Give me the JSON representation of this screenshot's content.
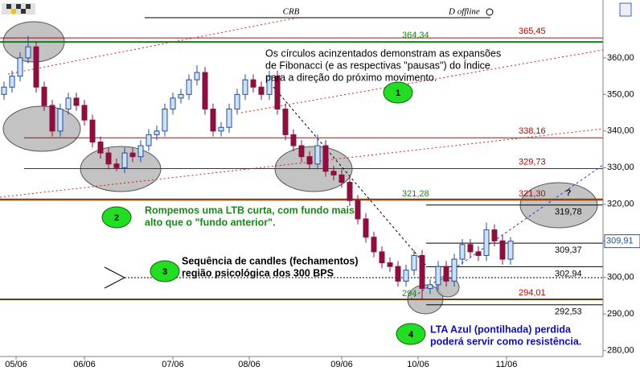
{
  "chart_data": {
    "type": "candlestick",
    "title": "CRB",
    "status": "D offline",
    "xlim": [
      -0.5,
      74.5
    ],
    "xticks": [
      {
        "value": 1.5,
        "label": "05/06"
      },
      {
        "value": 10,
        "label": "06/06"
      },
      {
        "value": 21,
        "label": "07/06"
      },
      {
        "value": 30.5,
        "label": "08/06"
      },
      {
        "value": 42,
        "label": "09/06"
      },
      {
        "value": 51.5,
        "label": "10/06"
      },
      {
        "value": 62.5,
        "label": "11/06"
      }
    ],
    "ylim": [
      278.4,
      375.8
    ],
    "yticks": [
      {
        "value": 280,
        "label": "280,00"
      },
      {
        "value": 290,
        "label": "290,00"
      },
      {
        "value": 300,
        "label": "300,00"
      },
      {
        "value": 310,
        "label": "310,00"
      },
      {
        "value": 320,
        "label": "320,00"
      },
      {
        "value": 330,
        "label": "330,00"
      },
      {
        "value": 340,
        "label": "340,00"
      },
      {
        "value": 350,
        "label": "350,00"
      },
      {
        "value": 360,
        "label": "360,00"
      }
    ],
    "last_price": {
      "value": 309.91,
      "label": "309,91"
    },
    "up_color": "#1f4fa0",
    "up_fill": "#cfe0fa",
    "down_color": "#8b1040",
    "open": [
      350,
      352,
      355,
      360,
      363,
      352,
      347,
      340,
      346,
      349,
      347,
      343,
      337,
      334,
      331,
      330,
      334,
      333,
      336,
      339,
      340,
      346,
      349,
      350,
      354,
      356,
      346,
      340,
      341,
      346,
      350,
      354,
      352,
      350,
      355,
      346,
      339,
      336,
      333,
      331,
      336,
      329,
      328,
      326,
      321,
      316,
      311,
      307,
      304,
      303,
      299,
      302,
      306,
      297,
      298,
      303,
      299,
      305,
      309,
      307,
      306,
      313,
      310,
      305
    ],
    "high": [
      353.5,
      356.5,
      361.5,
      366,
      364.5,
      353.5,
      348.5,
      347.5,
      350.5,
      350.5,
      348.5,
      344.5,
      338.5,
      335.5,
      332.5,
      335.5,
      335.5,
      337.5,
      340.5,
      341.5,
      347.5,
      350.5,
      351.5,
      355.5,
      358,
      357.5,
      347.5,
      342.5,
      347.5,
      351.5,
      355.5,
      355.5,
      353.5,
      356.5,
      356.5,
      347.5,
      340.5,
      337.5,
      334.5,
      339,
      337.5,
      330.5,
      329.5,
      327.5,
      322.5,
      317.5,
      312.5,
      308.5,
      305.5,
      304.5,
      303.5,
      307.5,
      307.5,
      299.5,
      304.5,
      304.5,
      306.5,
      310.5,
      310.5,
      308.5,
      315,
      314.5,
      311.5,
      311
    ],
    "low": [
      348.5,
      350.5,
      353.5,
      358.5,
      350.5,
      345.5,
      338.5,
      338.5,
      344.5,
      345.5,
      341.5,
      335.5,
      332.5,
      329.5,
      329,
      328.5,
      331.5,
      331.5,
      334.5,
      337.5,
      338.5,
      344.5,
      347.5,
      348.5,
      352.5,
      344.5,
      338.5,
      338.5,
      339.5,
      344.5,
      348.5,
      350.5,
      348.5,
      348.5,
      344.5,
      337.5,
      334.5,
      331.5,
      329.5,
      329.5,
      327.5,
      326.5,
      324.5,
      319.5,
      314.5,
      309.5,
      305.5,
      302.5,
      301.5,
      297.5,
      297.5,
      300.5,
      294,
      295.5,
      296.5,
      297.5,
      297.5,
      303.5,
      305.5,
      304.5,
      304.5,
      308.5,
      303.5,
      303.5
    ],
    "close": [
      352,
      355,
      360,
      363,
      352,
      347,
      340,
      346,
      349,
      347,
      343,
      337,
      334,
      331,
      330,
      334,
      333,
      336,
      339,
      340,
      346,
      349,
      350,
      354,
      356,
      346,
      340,
      341,
      346,
      350,
      354,
      352,
      350,
      355,
      346,
      339,
      336,
      333,
      331,
      336,
      329,
      328,
      326,
      321,
      316,
      311,
      307,
      304,
      303,
      299,
      302,
      306,
      297,
      298,
      303,
      299,
      305,
      309,
      307,
      306,
      313,
      310,
      305,
      309.91
    ],
    "levels": [
      {
        "value": 364.34,
        "label": "364,34",
        "color": "#1a8a1a",
        "line_color": "#1a7a1a"
      },
      {
        "value": 365.45,
        "label": "365,45",
        "color": "#c00000",
        "line_color": "#c00000"
      },
      {
        "value": 338.16,
        "label": "338,16",
        "color": "#c00000",
        "line_color": "#c00000"
      },
      {
        "value": 329.73,
        "label": "329,73",
        "color": "#c00000",
        "line_color": "#c00000"
      },
      {
        "value": 321.28,
        "label": "321,28",
        "color": "#1a8a1a",
        "line_color": "#8b4513"
      },
      {
        "value": 321.3,
        "label": "321,30",
        "color": "#c00000"
      },
      {
        "value": 319.78,
        "label": "319,78",
        "color": "#000000",
        "line_color": "#000000"
      },
      {
        "value": 309.37,
        "label": "309,37",
        "color": "#000000",
        "line_color": "#000000"
      },
      {
        "value": 302.94,
        "label": "302,94",
        "color": "#000000",
        "line_color": "#000000"
      },
      {
        "value": 294,
        "label": "294",
        "color": "#1a8a1a",
        "line_color": "#1a7a1a"
      },
      {
        "value": 294.01,
        "label": "294,01",
        "color": "#c00000",
        "line_color": "#c00000"
      },
      {
        "value": 292.53,
        "label": "292,53",
        "color": "#000000",
        "line_color": "#000000"
      }
    ],
    "notes": [
      {
        "lines": [
          "Os círculos acinzentados demonstram as expansões",
          "de Fibonacci (e as respectivas \"pausas\") do Índice",
          "para a direção do próximo movimento."
        ],
        "color": "#000000"
      },
      {
        "lines": [
          "Rompemos uma LTB curta, com fundo mais",
          "alto que o \"fundo anterior\"."
        ],
        "color": "#1a8a1a"
      },
      {
        "lines": [
          "Sequência de candles (fechamentos)",
          "região psicológica dos 300 BPS"
        ],
        "color": "#000000"
      },
      {
        "lines": [
          "LTA Azul (pontilhada) perdida",
          "poderá servir como resistência."
        ],
        "color": "#1010b0"
      }
    ],
    "markers": [
      "1",
      "2",
      "3",
      "4"
    ],
    "question": "?"
  }
}
